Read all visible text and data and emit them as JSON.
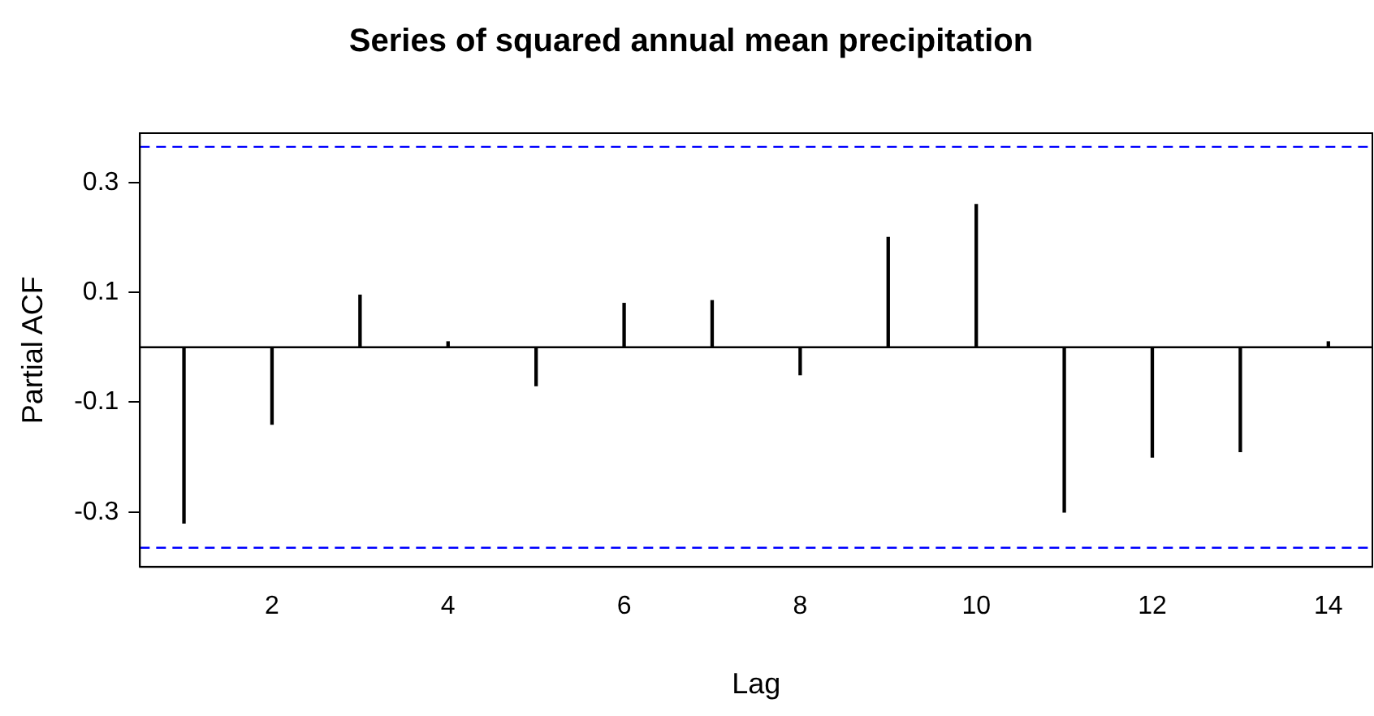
{
  "chart_data": {
    "type": "bar",
    "title": "Series of squared annual mean precipitation",
    "xlabel": "Lag",
    "ylabel": "Partial ACF",
    "x": [
      1,
      2,
      3,
      4,
      5,
      6,
      7,
      8,
      9,
      10,
      11,
      12,
      13,
      14
    ],
    "values": [
      -0.32,
      -0.14,
      0.095,
      0.01,
      -0.07,
      0.08,
      0.085,
      -0.05,
      0.2,
      0.26,
      -0.3,
      -0.2,
      -0.19,
      0.01
    ],
    "color": "#000000",
    "xlim": [
      0.5,
      14.5
    ],
    "xticks": [
      2,
      4,
      6,
      8,
      10,
      12,
      14
    ],
    "ylim": [
      -0.4,
      0.39
    ],
    "yticks": [
      -0.3,
      -0.1,
      0.1,
      0.3
    ],
    "ref_lines": [
      {
        "axis": "y",
        "value": 0.365,
        "color": "#0000ff",
        "line_style": "dashed"
      },
      {
        "axis": "y",
        "value": -0.365,
        "color": "#0000ff",
        "line_style": "dashed"
      },
      {
        "axis": "y",
        "value": 0,
        "color": "#000000",
        "line_style": "solid"
      }
    ],
    "grid": false,
    "legend": false
  }
}
